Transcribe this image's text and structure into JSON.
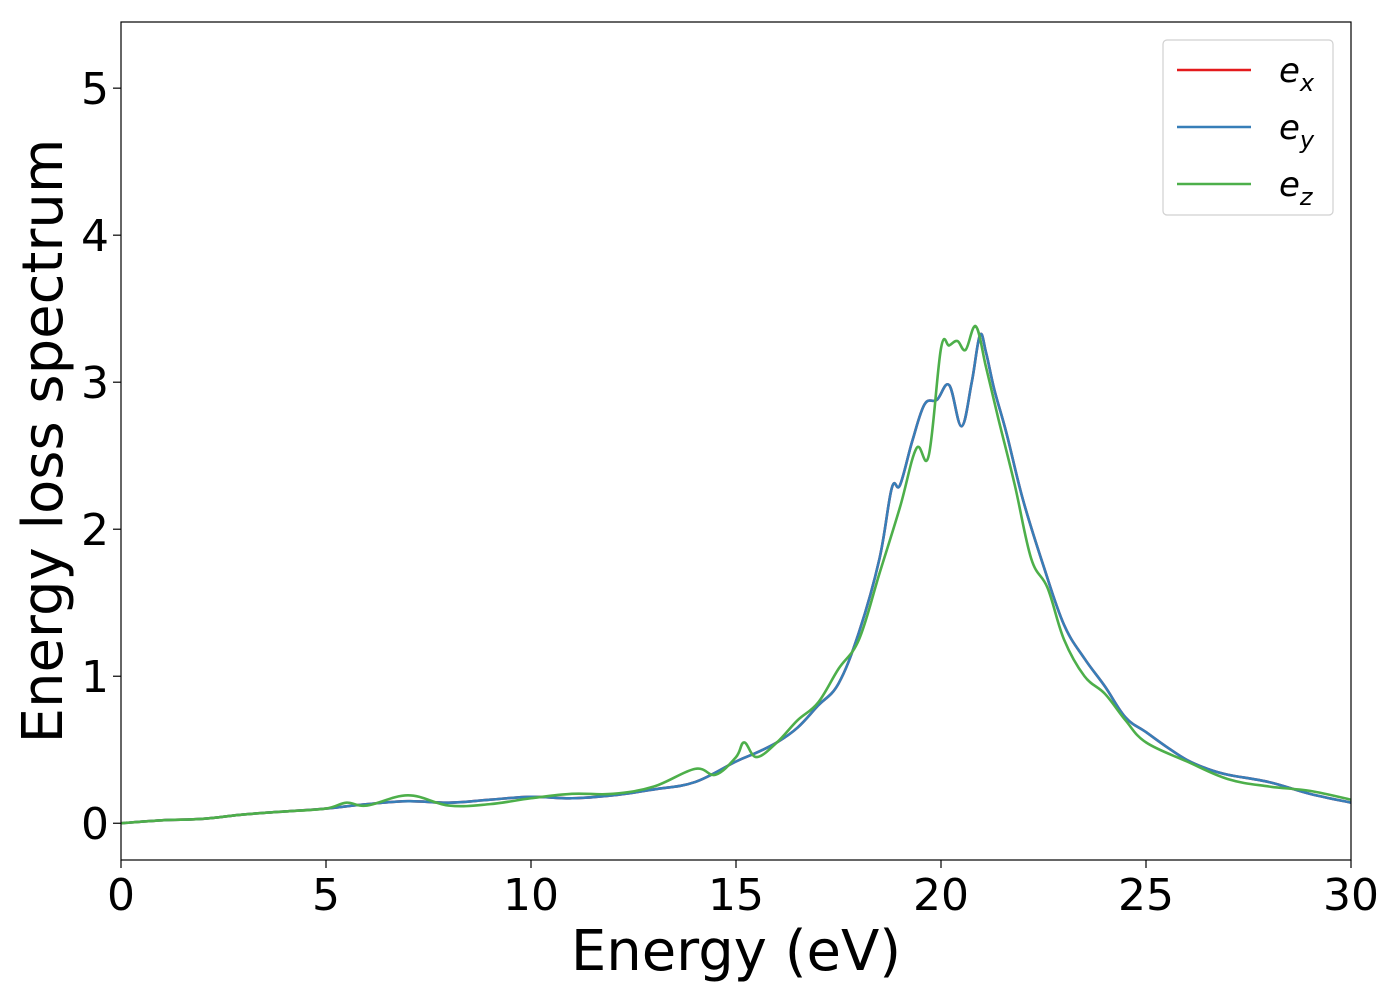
{
  "chart_data": {
    "type": "line",
    "title": "",
    "xlabel": "Energy (eV)",
    "ylabel": "Energy loss spectrum",
    "xlim": [
      0,
      30
    ],
    "ylim": [
      -0.25,
      5.45
    ],
    "xticks": [
      0,
      5,
      10,
      15,
      20,
      25,
      30
    ],
    "yticks": [
      0,
      1,
      2,
      3,
      4,
      5
    ],
    "grid": false,
    "legend_position": "top-right",
    "series": [
      {
        "name": "e",
        "subscript": "x",
        "color": "#e41a1c",
        "x": [
          0,
          1,
          2,
          3,
          4,
          5,
          6,
          7,
          8,
          9,
          10,
          11,
          12,
          13,
          14,
          15,
          15.5,
          16,
          16.5,
          17,
          17.5,
          18,
          18.5,
          18.8,
          19,
          19.3,
          19.6,
          19.9,
          20.2,
          20.5,
          20.75,
          20.95,
          21.1,
          21.3,
          21.6,
          22,
          22.5,
          23,
          23.5,
          24,
          24.5,
          25,
          25.5,
          26,
          26.5,
          27,
          28,
          29,
          30
        ],
        "y": [
          0,
          0.02,
          0.03,
          0.06,
          0.08,
          0.1,
          0.13,
          0.15,
          0.14,
          0.16,
          0.18,
          0.17,
          0.19,
          0.23,
          0.28,
          0.42,
          0.48,
          0.55,
          0.65,
          0.8,
          0.95,
          1.3,
          1.8,
          2.28,
          2.3,
          2.6,
          2.85,
          2.88,
          2.98,
          2.7,
          3.0,
          3.32,
          3.2,
          2.95,
          2.65,
          2.2,
          1.75,
          1.35,
          1.12,
          0.93,
          0.72,
          0.62,
          0.52,
          0.43,
          0.37,
          0.33,
          0.28,
          0.2,
          0.14
        ]
      },
      {
        "name": "e",
        "subscript": "y",
        "color": "#377eb8",
        "x": [
          0,
          1,
          2,
          3,
          4,
          5,
          6,
          7,
          8,
          9,
          10,
          11,
          12,
          13,
          14,
          15,
          15.5,
          16,
          16.5,
          17,
          17.5,
          18,
          18.5,
          18.8,
          19,
          19.3,
          19.6,
          19.9,
          20.2,
          20.5,
          20.75,
          20.95,
          21.1,
          21.3,
          21.6,
          22,
          22.5,
          23,
          23.5,
          24,
          24.5,
          25,
          25.5,
          26,
          26.5,
          27,
          28,
          29,
          30
        ],
        "y": [
          0,
          0.02,
          0.03,
          0.06,
          0.08,
          0.1,
          0.13,
          0.15,
          0.14,
          0.16,
          0.18,
          0.17,
          0.19,
          0.23,
          0.28,
          0.42,
          0.48,
          0.55,
          0.65,
          0.8,
          0.95,
          1.3,
          1.8,
          2.28,
          2.3,
          2.6,
          2.85,
          2.88,
          2.98,
          2.7,
          3.0,
          3.32,
          3.2,
          2.95,
          2.65,
          2.2,
          1.75,
          1.35,
          1.12,
          0.93,
          0.72,
          0.62,
          0.52,
          0.43,
          0.37,
          0.33,
          0.28,
          0.2,
          0.14
        ]
      },
      {
        "name": "e",
        "subscript": "z",
        "color": "#4daf4a",
        "x": [
          0,
          1,
          2,
          3,
          4,
          5,
          5.5,
          6,
          7,
          8,
          9,
          10,
          11,
          12,
          13,
          14,
          14.5,
          15,
          15.2,
          15.5,
          16,
          16.5,
          17,
          17.5,
          18,
          18.5,
          19,
          19.4,
          19.7,
          20,
          20.2,
          20.4,
          20.6,
          20.85,
          21.1,
          21.4,
          21.8,
          22.2,
          22.6,
          23,
          23.5,
          24,
          24.5,
          25,
          26,
          27,
          28,
          29,
          30
        ],
        "y": [
          0,
          0.02,
          0.03,
          0.06,
          0.08,
          0.1,
          0.14,
          0.12,
          0.19,
          0.12,
          0.13,
          0.17,
          0.2,
          0.2,
          0.25,
          0.37,
          0.33,
          0.45,
          0.55,
          0.45,
          0.55,
          0.7,
          0.82,
          1.05,
          1.25,
          1.7,
          2.15,
          2.55,
          2.5,
          3.23,
          3.25,
          3.28,
          3.22,
          3.38,
          3.1,
          2.75,
          2.3,
          1.8,
          1.6,
          1.25,
          1.0,
          0.88,
          0.7,
          0.55,
          0.42,
          0.3,
          0.25,
          0.22,
          0.16
        ]
      }
    ]
  }
}
